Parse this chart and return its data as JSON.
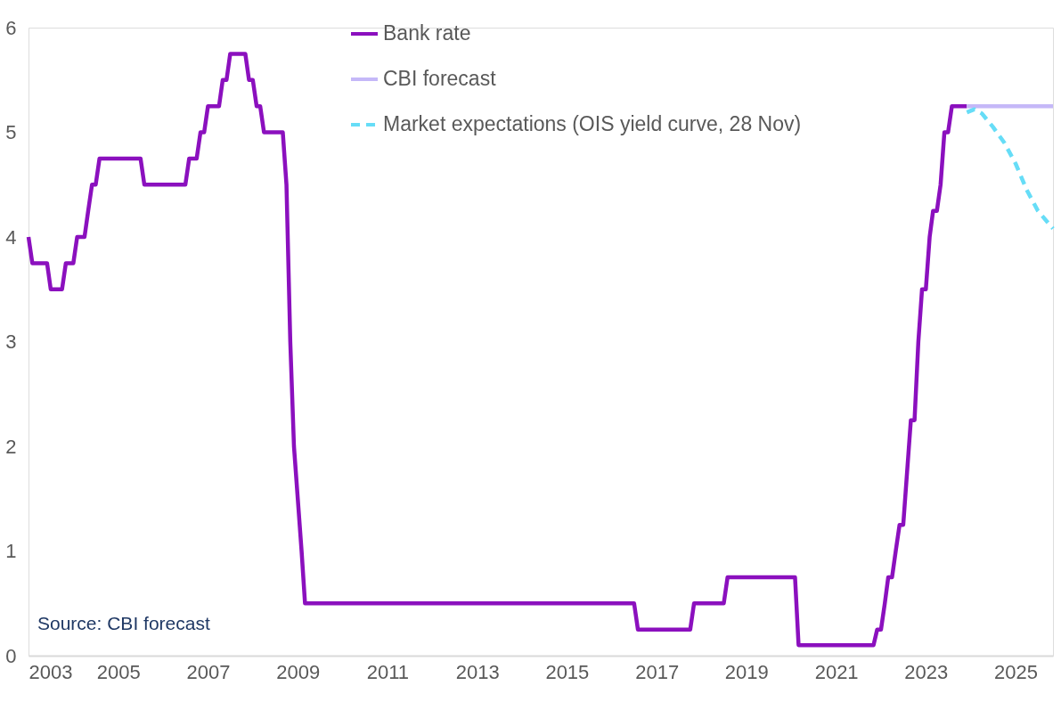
{
  "chart_data": {
    "type": "line",
    "xlim": [
      "2003-01",
      "2025-11"
    ],
    "xticks": [
      {
        "value": "2003",
        "label": "2003"
      },
      {
        "value": "2005",
        "label": "2005"
      },
      {
        "value": "2007",
        "label": "2007"
      },
      {
        "value": "2009",
        "label": "2009"
      },
      {
        "value": "2011",
        "label": "2011"
      },
      {
        "value": "2013",
        "label": "2013"
      },
      {
        "value": "2015",
        "label": "2015"
      },
      {
        "value": "2017",
        "label": "2017"
      },
      {
        "value": "2019",
        "label": "2019"
      },
      {
        "value": "2021",
        "label": "2021"
      },
      {
        "value": "2023",
        "label": "2023"
      },
      {
        "value": "2025",
        "label": "2025"
      }
    ],
    "ylim": [
      0,
      6
    ],
    "yticks": [
      0,
      1,
      2,
      3,
      4,
      5,
      6
    ],
    "grid": false,
    "legend": "top",
    "line_style": "solid",
    "marker": "none",
    "annotations": [
      "Source: CBI forecast"
    ],
    "series": [
      {
        "name": "Bank rate",
        "color": "#8b10be",
        "x": [
          "2003-01",
          "2003-02",
          "2003-06",
          "2003-07",
          "2003-10",
          "2003-11",
          "2004-01",
          "2004-02",
          "2004-04",
          "2004-05",
          "2004-06",
          "2004-07",
          "2004-08",
          "2005-07",
          "2005-08",
          "2006-07",
          "2006-08",
          "2006-10",
          "2006-11",
          "2006-12",
          "2007-01",
          "2007-04",
          "2007-05",
          "2007-06",
          "2007-07",
          "2007-11",
          "2007-12",
          "2008-01",
          "2008-02",
          "2008-03",
          "2008-04",
          "2008-09",
          "2008-10",
          "2008-11",
          "2008-12",
          "2009-01",
          "2009-02",
          "2009-03",
          "2016-07",
          "2016-08",
          "2017-10",
          "2017-11",
          "2018-07",
          "2018-08",
          "2020-02",
          "2020-03",
          "2021-11",
          "2021-12",
          "2022-01",
          "2022-02",
          "2022-03",
          "2022-04",
          "2022-05",
          "2022-06",
          "2022-07",
          "2022-08",
          "2022-09",
          "2022-10",
          "2022-11",
          "2022-12",
          "2023-01",
          "2023-02",
          "2023-03",
          "2023-04",
          "2023-05",
          "2023-06",
          "2023-07",
          "2023-08",
          "2023-12"
        ],
        "values": [
          4.0,
          3.75,
          3.75,
          3.5,
          3.5,
          3.75,
          3.75,
          4.0,
          4.0,
          4.25,
          4.5,
          4.5,
          4.75,
          4.75,
          4.5,
          4.5,
          4.75,
          4.75,
          5.0,
          5.0,
          5.25,
          5.25,
          5.5,
          5.5,
          5.75,
          5.75,
          5.5,
          5.5,
          5.25,
          5.25,
          5.0,
          5.0,
          4.5,
          3.0,
          2.0,
          1.5,
          1.0,
          0.5,
          0.5,
          0.25,
          0.25,
          0.5,
          0.5,
          0.75,
          0.75,
          0.1,
          0.1,
          0.25,
          0.25,
          0.5,
          0.75,
          0.75,
          1.0,
          1.25,
          1.25,
          1.75,
          2.25,
          2.25,
          3.0,
          3.5,
          3.5,
          4.0,
          4.25,
          4.25,
          4.5,
          5.0,
          5.0,
          5.25,
          5.25
        ]
      },
      {
        "name": "CBI forecast",
        "color": "#c5b8f8",
        "x": [
          "2023-12",
          "2025-11"
        ],
        "values": [
          5.25,
          5.25
        ]
      },
      {
        "name": "Market expectations (OIS yield curve, 28 Nov)",
        "color": "#66ddf7",
        "line_style": "dashed",
        "x": [
          "2023-12",
          "2024-02",
          "2024-04",
          "2024-07",
          "2024-10",
          "2025-01",
          "2025-04",
          "2025-07",
          "2025-11"
        ],
        "values": [
          5.19,
          5.22,
          5.18,
          5.05,
          4.9,
          4.7,
          4.45,
          4.25,
          4.08
        ]
      }
    ]
  }
}
